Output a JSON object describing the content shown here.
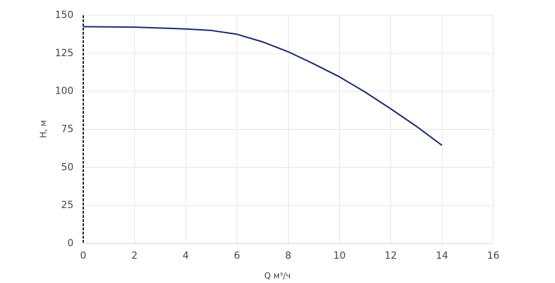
{
  "chart_data": {
    "type": "line",
    "x_label": "Q м³/ч",
    "y_label": "H, м",
    "series": [
      {
        "color": "#1b2a6b",
        "x": [
          0,
          2,
          4,
          5,
          6,
          7,
          8,
          9,
          10,
          11,
          12,
          13,
          14
        ],
        "values": [
          142.5,
          142.2,
          141,
          140,
          137.5,
          132.5,
          126,
          118,
          109.5,
          99.5,
          88.5,
          77,
          64.5
        ]
      }
    ],
    "xlim": [
      0,
      16
    ],
    "xticks": [
      0,
      2,
      4,
      6,
      8,
      10,
      12,
      14,
      16
    ],
    "ylim": [
      0,
      150
    ],
    "yticks": [
      0,
      25,
      50,
      75,
      100,
      125,
      150
    ],
    "grid": true
  }
}
